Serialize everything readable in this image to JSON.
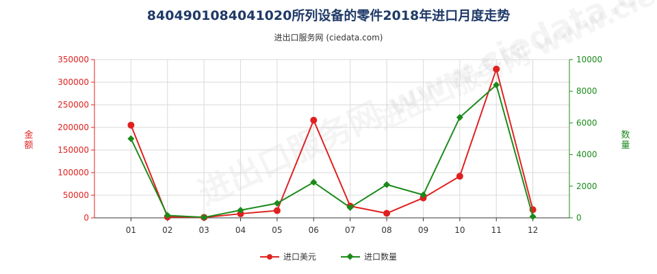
{
  "chart_data": {
    "type": "line",
    "title": "8404901084041020所列设备的零件2018年进口月度走势",
    "subtitle": "进出口服务网 (ciedata.com)",
    "watermark": "进出口服务网 www.ciedata.com",
    "categories": [
      "01",
      "02",
      "03",
      "04",
      "05",
      "06",
      "07",
      "08",
      "09",
      "10",
      "11",
      "12"
    ],
    "ylabel_left": "金额",
    "ylabel_right": "数量",
    "ylim_left": [
      0,
      350000
    ],
    "ylim_right": [
      0,
      10000
    ],
    "yticks_left": [
      "0",
      "50000",
      "100000",
      "150000",
      "200000",
      "250000",
      "300000",
      "350000"
    ],
    "yticks_right": [
      "0",
      "2000",
      "4000",
      "6000",
      "8000",
      "10000"
    ],
    "grid": true,
    "legend_position": "bottom",
    "series": [
      {
        "name": "进口美元",
        "axis": "left",
        "color": "#e0201f",
        "marker": "circle",
        "values": [
          205000,
          2000,
          1000,
          9000,
          16000,
          216000,
          26000,
          10000,
          44000,
          92000,
          329000,
          18000
        ]
      },
      {
        "name": "进口数量",
        "axis": "right",
        "color": "#1a8a1a",
        "marker": "diamond",
        "values": [
          5000,
          150,
          30,
          480,
          920,
          2250,
          650,
          2100,
          1450,
          6350,
          8400,
          80
        ]
      }
    ]
  },
  "colors": {
    "left_axis": "#e0201f",
    "right_axis": "#1a8a1a",
    "title": "#1f3a68",
    "grid": "#d9d9d9"
  }
}
